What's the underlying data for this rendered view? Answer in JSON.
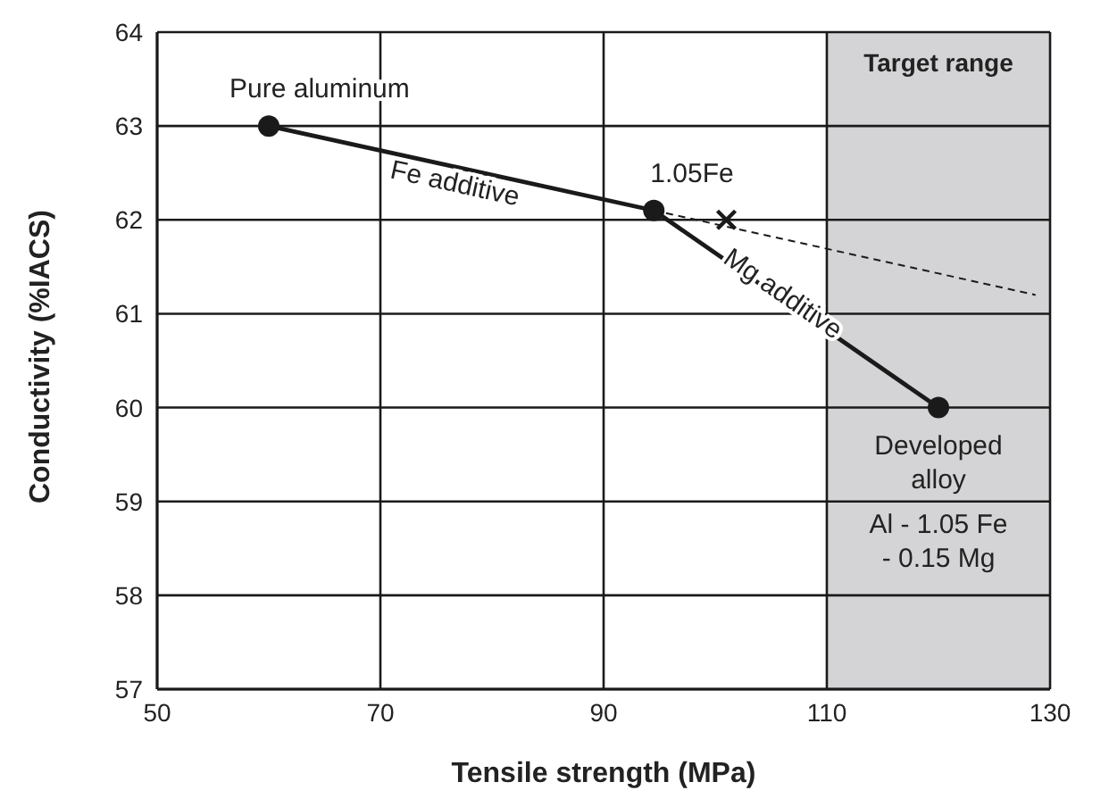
{
  "chart_data": {
    "type": "line",
    "xlabel": "Tensile strength (MPa)",
    "ylabel": "Conductivity (%IACS)",
    "series": [
      {
        "color": "#1a1a1a",
        "x": [
          60,
          94.5,
          120
        ],
        "values": [
          63,
          62.1,
          60
        ],
        "marker": "circle",
        "line_style": "solid"
      },
      {
        "color": "#1a1a1a",
        "x": [
          94.5,
          128.7
        ],
        "values": [
          62.1,
          61.2
        ],
        "marker": "none",
        "line_style": "dashed"
      },
      {
        "type": "scatter",
        "color": "#1a1a1a",
        "x": [
          101
        ],
        "values": [
          62.0
        ],
        "marker": "cross"
      }
    ],
    "xlim": [
      50,
      130
    ],
    "xticks": [
      50,
      70,
      90,
      110,
      130
    ],
    "ylim": [
      57,
      64
    ],
    "yticks": [
      57,
      58,
      59,
      60,
      61,
      62,
      63,
      64
    ],
    "grid": true,
    "bands": [
      {
        "axis": "x",
        "from": 110,
        "to": 130,
        "label": "Target range",
        "color": "#d4d4d6"
      }
    ],
    "annotations": [
      {
        "text": "Pure aluminum",
        "x": 60,
        "y": 63
      },
      {
        "text": "1.05Fe",
        "x": 94.5,
        "y": 62.1
      },
      {
        "text": "Fe additive",
        "x": 77,
        "y": 62.56
      },
      {
        "text": "Mg additive",
        "x": 106,
        "y": 61.2
      },
      {
        "text": "Developed alloy",
        "x": 120,
        "y": 60
      },
      "Al - 1.05 Fe - 0.15 Mg"
    ]
  }
}
